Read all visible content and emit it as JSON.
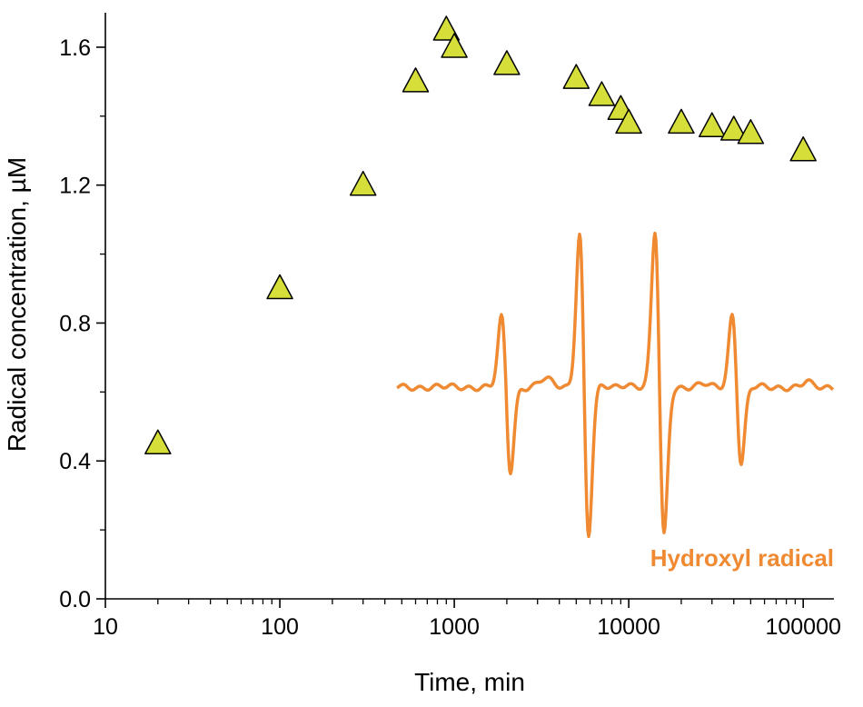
{
  "chart_data": {
    "type": "scatter",
    "title": "",
    "xlabel": "Time, min",
    "ylabel": "Radical concentration, µM",
    "xscale": "log",
    "xlim": [
      10,
      150000
    ],
    "ylim": [
      0.0,
      1.7
    ],
    "x_ticks": [
      "10",
      "100",
      "1000",
      "10000",
      "100000"
    ],
    "y_ticks": [
      "0.0",
      "0.4",
      "0.8",
      "1.2",
      "1.6"
    ],
    "grid": false,
    "marker": "triangle",
    "marker_color": "#d6df3a",
    "series": [
      {
        "x": [
          20,
          100,
          300,
          600,
          900,
          1000,
          2000,
          5000,
          7000,
          9000,
          10000,
          20000,
          30000,
          40000,
          50000,
          100000
        ],
        "y": [
          0.45,
          0.9,
          1.2,
          1.5,
          1.65,
          1.6,
          1.55,
          1.51,
          1.46,
          1.42,
          1.38,
          1.38,
          1.37,
          1.36,
          1.35,
          1.3
        ]
      }
    ],
    "inset": {
      "label": "Hydroxyl radical",
      "color": "#ef8a33",
      "description_type": "EPR spectrum (1:2:2:1 quartet)"
    }
  }
}
